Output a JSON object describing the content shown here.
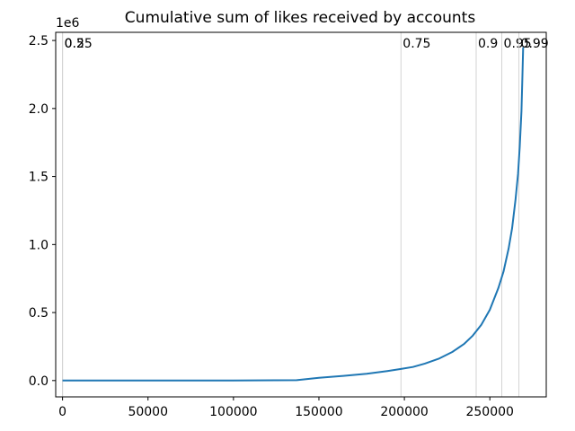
{
  "chart_data": {
    "type": "line",
    "title": "Cumulative sum of likes received by accounts",
    "xlabel": "",
    "ylabel": "",
    "y_offset_label": "1e6",
    "xlim": [
      -4000,
      283000
    ],
    "ylim": [
      -0.12,
      2.56
    ],
    "grid": false,
    "x_ticks": [
      0,
      50000,
      100000,
      150000,
      200000,
      250000
    ],
    "x_tick_labels": [
      "0",
      "50000",
      "100000",
      "150000",
      "200000",
      "250000"
    ],
    "y_ticks": [
      0.0,
      0.5,
      1.0,
      1.5,
      2.0,
      2.5
    ],
    "y_tick_labels": [
      "0.0",
      "0.5",
      "1.0",
      "1.5",
      "2.0",
      "2.5"
    ],
    "series": [
      {
        "color": "#1f77b4",
        "x": [
          0,
          50000,
          100000,
          137000,
          150000,
          165000,
          178000,
          190000,
          198000,
          205000,
          212000,
          220000,
          228000,
          235000,
          240000,
          245000,
          250000,
          255000,
          258000,
          261000,
          263000,
          265000,
          266500,
          267500,
          268500,
          269000,
          269500
        ],
        "y": [
          0.0,
          0.0,
          0.0,
          0.003,
          0.02,
          0.035,
          0.05,
          0.07,
          0.085,
          0.1,
          0.125,
          0.16,
          0.21,
          0.27,
          0.33,
          0.41,
          0.52,
          0.68,
          0.8,
          0.97,
          1.12,
          1.33,
          1.52,
          1.72,
          1.98,
          2.22,
          2.45
        ]
      }
    ],
    "quantile_lines": [
      {
        "label": "0.25",
        "x": 0
      },
      {
        "label": "0.5",
        "x": 0
      },
      {
        "label": "0.75",
        "x": 198000
      },
      {
        "label": "0.9",
        "x": 242000
      },
      {
        "label": "0.95",
        "x": 257000
      },
      {
        "label": "0.99",
        "x": 267000
      }
    ],
    "colors": {
      "line": "#1f77b4",
      "quantile_line": "#d3d3d3",
      "axes": "#000000"
    }
  }
}
